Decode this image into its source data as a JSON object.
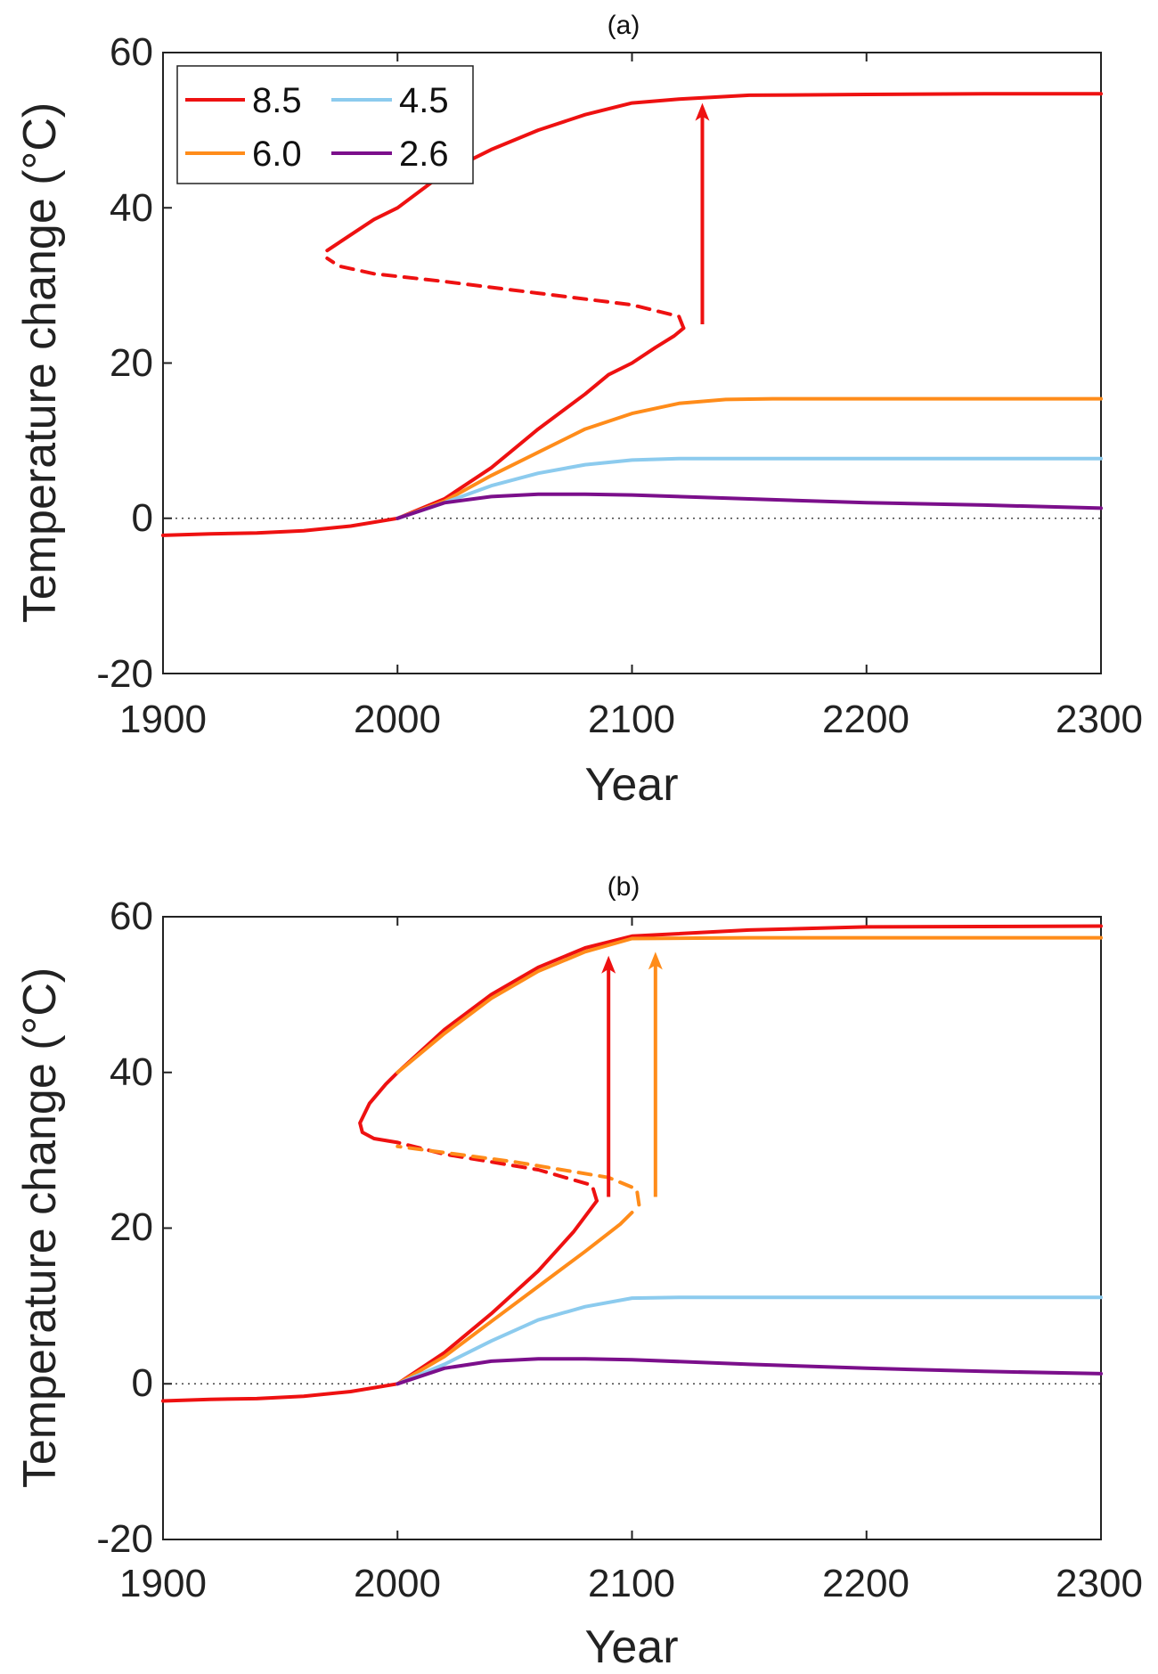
{
  "colors": {
    "8.5": "#ee1111",
    "6.0": "#ff8c1a",
    "4.5": "#8ccbee",
    "2.6": "#7b0f8b",
    "axis": "#222222",
    "zero_line": "#444444"
  },
  "chart_data": [
    {
      "type": "line",
      "title": "(a)",
      "xlabel": "Year",
      "ylabel": "Temperature change (°C)",
      "xlim": [
        1900,
        2300
      ],
      "ylim": [
        -20,
        60
      ],
      "xticks": [
        "1900",
        "2000",
        "2100",
        "2200",
        "2300"
      ],
      "yticks": [
        "-20",
        "0",
        "20",
        "40",
        "60"
      ],
      "grid": false,
      "zero_reference_line": "dotted",
      "legend": {
        "placement": "top-left",
        "columns": 2,
        "entries": [
          "8.5",
          "4.5",
          "6.0",
          "2.6"
        ]
      },
      "series": [
        {
          "name": "8.5",
          "segments": [
            {
              "style": "solid",
              "points": [
                [
                  1900,
                  -2.2
                ],
                [
                  1920,
                  -2.0
                ],
                [
                  1940,
                  -1.9
                ],
                [
                  1960,
                  -1.6
                ],
                [
                  1980,
                  -1.0
                ],
                [
                  2000,
                  0
                ],
                [
                  2020,
                  2.5
                ],
                [
                  2040,
                  6.5
                ],
                [
                  2060,
                  11.5
                ],
                [
                  2080,
                  16
                ],
                [
                  2090,
                  18.5
                ],
                [
                  2100,
                  20
                ],
                [
                  2110,
                  22
                ],
                [
                  2118,
                  23.5
                ],
                [
                  2122,
                  24.5
                ]
              ]
            },
            {
              "style": "dashed",
              "points": [
                [
                  2122,
                  24.5
                ],
                [
                  2120,
                  26
                ],
                [
                  2100,
                  27.5
                ],
                [
                  2060,
                  29
                ],
                [
                  2020,
                  30.5
                ],
                [
                  1990,
                  31.5
                ],
                [
                  1975,
                  32.5
                ],
                [
                  1970,
                  33.5
                ]
              ]
            },
            {
              "style": "solid",
              "points": [
                [
                  1970,
                  34.5
                ],
                [
                  1980,
                  36.5
                ],
                [
                  1990,
                  38.5
                ],
                [
                  2000,
                  40
                ],
                [
                  2020,
                  44.5
                ],
                [
                  2040,
                  47.5
                ],
                [
                  2060,
                  50
                ],
                [
                  2080,
                  52
                ],
                [
                  2100,
                  53.5
                ],
                [
                  2120,
                  54
                ],
                [
                  2150,
                  54.5
                ],
                [
                  2200,
                  54.6
                ],
                [
                  2250,
                  54.7
                ],
                [
                  2300,
                  54.7
                ]
              ]
            }
          ]
        },
        {
          "name": "6.0",
          "segments": [
            {
              "style": "solid",
              "points": [
                [
                  2000,
                  0
                ],
                [
                  2020,
                  2.2
                ],
                [
                  2040,
                  5.5
                ],
                [
                  2060,
                  8.5
                ],
                [
                  2080,
                  11.5
                ],
                [
                  2100,
                  13.5
                ],
                [
                  2120,
                  14.8
                ],
                [
                  2140,
                  15.3
                ],
                [
                  2160,
                  15.4
                ],
                [
                  2200,
                  15.4
                ],
                [
                  2300,
                  15.4
                ]
              ]
            }
          ]
        },
        {
          "name": "4.5",
          "segments": [
            {
              "style": "solid",
              "points": [
                [
                  2000,
                  0
                ],
                [
                  2020,
                  2
                ],
                [
                  2040,
                  4.2
                ],
                [
                  2060,
                  5.8
                ],
                [
                  2080,
                  6.9
                ],
                [
                  2100,
                  7.5
                ],
                [
                  2120,
                  7.7
                ],
                [
                  2200,
                  7.7
                ],
                [
                  2300,
                  7.7
                ]
              ]
            }
          ]
        },
        {
          "name": "2.6",
          "segments": [
            {
              "style": "solid",
              "points": [
                [
                  2000,
                  0
                ],
                [
                  2020,
                  2
                ],
                [
                  2040,
                  2.8
                ],
                [
                  2060,
                  3.1
                ],
                [
                  2080,
                  3.1
                ],
                [
                  2100,
                  3.0
                ],
                [
                  2150,
                  2.5
                ],
                [
                  2200,
                  2.0
                ],
                [
                  2250,
                  1.7
                ],
                [
                  2300,
                  1.3
                ]
              ]
            }
          ]
        }
      ],
      "arrows": [
        {
          "color_key": "8.5",
          "x": 2130,
          "y_from": 25,
          "y_to": 53.5
        }
      ]
    },
    {
      "type": "line",
      "title": "(b)",
      "xlabel": "Year",
      "ylabel": "Temperature change (°C)",
      "xlim": [
        1900,
        2300
      ],
      "ylim": [
        -20,
        60
      ],
      "xticks": [
        "1900",
        "2000",
        "2100",
        "2200",
        "2300"
      ],
      "yticks": [
        "-20",
        "0",
        "20",
        "40",
        "60"
      ],
      "grid": false,
      "zero_reference_line": "dotted",
      "series": [
        {
          "name": "8.5",
          "segments": [
            {
              "style": "solid",
              "points": [
                [
                  1900,
                  -2.2
                ],
                [
                  1920,
                  -2.0
                ],
                [
                  1940,
                  -1.9
                ],
                [
                  1960,
                  -1.6
                ],
                [
                  1980,
                  -1.0
                ],
                [
                  2000,
                  0
                ],
                [
                  2020,
                  4
                ],
                [
                  2040,
                  9
                ],
                [
                  2060,
                  14.5
                ],
                [
                  2075,
                  19.5
                ],
                [
                  2085,
                  23.5
                ]
              ]
            },
            {
              "style": "dashed",
              "points": [
                [
                  2085,
                  23.5
                ],
                [
                  2083,
                  25.5
                ],
                [
                  2060,
                  27.5
                ],
                [
                  2040,
                  28.5
                ],
                [
                  2020,
                  29.5
                ],
                [
                  2000,
                  31
                ]
              ]
            },
            {
              "style": "solid",
              "points": [
                [
                  2000,
                  31
                ],
                [
                  1990,
                  31.5
                ],
                [
                  1985,
                  32.3
                ],
                [
                  1984,
                  33.5
                ],
                [
                  1988,
                  36
                ],
                [
                  1995,
                  38.5
                ],
                [
                  2000,
                  40
                ],
                [
                  2020,
                  45.5
                ],
                [
                  2040,
                  50
                ],
                [
                  2060,
                  53.5
                ],
                [
                  2080,
                  56
                ],
                [
                  2100,
                  57.5
                ],
                [
                  2150,
                  58.3
                ],
                [
                  2200,
                  58.7
                ],
                [
                  2300,
                  58.8
                ]
              ]
            }
          ]
        },
        {
          "name": "6.0",
          "segments": [
            {
              "style": "solid",
              "points": [
                [
                  2000,
                  0
                ],
                [
                  2020,
                  3.5
                ],
                [
                  2040,
                  8
                ],
                [
                  2060,
                  12.5
                ],
                [
                  2080,
                  17
                ],
                [
                  2095,
                  20.5
                ],
                [
                  2100,
                  22
                ]
              ]
            },
            {
              "style": "dashed",
              "points": [
                [
                  2103,
                  23
                ],
                [
                  2102,
                  25
                ],
                [
                  2090,
                  26.5
                ],
                [
                  2070,
                  27.5
                ],
                [
                  2050,
                  28.5
                ],
                [
                  2030,
                  29.3
                ],
                [
                  2000,
                  30.5
                ]
              ]
            },
            {
              "style": "solid",
              "points": [
                [
                  2000,
                  40
                ],
                [
                  2020,
                  45
                ],
                [
                  2040,
                  49.5
                ],
                [
                  2060,
                  53
                ],
                [
                  2080,
                  55.5
                ],
                [
                  2100,
                  57.2
                ],
                [
                  2150,
                  57.3
                ],
                [
                  2200,
                  57.3
                ],
                [
                  2300,
                  57.3
                ]
              ]
            }
          ]
        },
        {
          "name": "4.5",
          "segments": [
            {
              "style": "solid",
              "points": [
                [
                  2000,
                  0
                ],
                [
                  2020,
                  2.5
                ],
                [
                  2040,
                  5.5
                ],
                [
                  2060,
                  8.2
                ],
                [
                  2080,
                  9.9
                ],
                [
                  2100,
                  11
                ],
                [
                  2120,
                  11.1
                ],
                [
                  2200,
                  11.1
                ],
                [
                  2300,
                  11.1
                ]
              ]
            }
          ]
        },
        {
          "name": "2.6",
          "segments": [
            {
              "style": "solid",
              "points": [
                [
                  2000,
                  0
                ],
                [
                  2020,
                  2
                ],
                [
                  2040,
                  2.9
                ],
                [
                  2060,
                  3.2
                ],
                [
                  2080,
                  3.2
                ],
                [
                  2100,
                  3.1
                ],
                [
                  2150,
                  2.5
                ],
                [
                  2200,
                  2.0
                ],
                [
                  2250,
                  1.6
                ],
                [
                  2300,
                  1.3
                ]
              ]
            }
          ]
        }
      ],
      "arrows": [
        {
          "color_key": "8.5",
          "x": 2090,
          "y_from": 24,
          "y_to": 55
        },
        {
          "color_key": "6.0",
          "x": 2110,
          "y_from": 24,
          "y_to": 55.5
        }
      ]
    }
  ]
}
